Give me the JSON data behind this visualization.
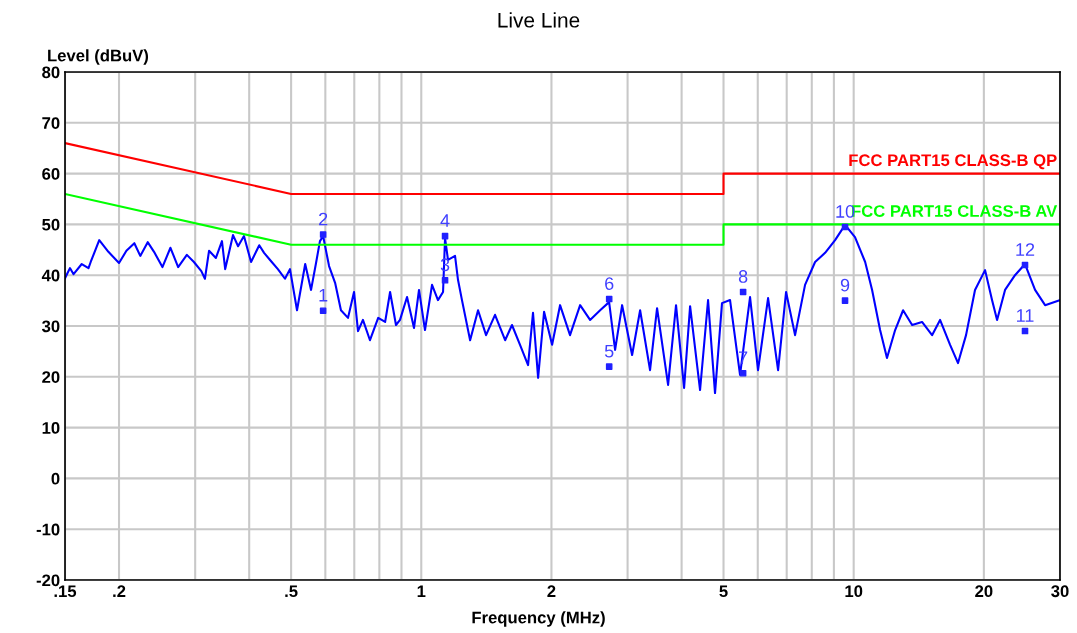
{
  "chart_data": {
    "type": "line",
    "title": "Live Line",
    "xlabel": "Frequency (MHz)",
    "ylabel": "Level (dBuV)",
    "log": "x",
    "grid": true,
    "xlim": [
      0.15,
      30
    ],
    "ylim": [
      -20,
      80
    ],
    "xticks": [
      {
        "value": 0.15,
        "label": ".15"
      },
      {
        "value": 0.2,
        "label": ".2"
      },
      {
        "value": 0.3,
        "label": null
      },
      {
        "value": 0.4,
        "label": null
      },
      {
        "value": 0.5,
        "label": ".5"
      },
      {
        "value": 0.6,
        "label": null
      },
      {
        "value": 0.7,
        "label": null
      },
      {
        "value": 0.8,
        "label": null
      },
      {
        "value": 0.9,
        "label": null
      },
      1,
      2,
      {
        "value": 3,
        "label": null
      },
      {
        "value": 4,
        "label": null
      },
      5,
      {
        "value": 6,
        "label": null
      },
      {
        "value": 7,
        "label": null
      },
      {
        "value": 8,
        "label": null
      },
      {
        "value": 9,
        "label": null
      },
      10,
      20,
      30
    ],
    "yticks": [
      -20,
      -10,
      0,
      10,
      20,
      30,
      40,
      50,
      60,
      70,
      80
    ],
    "series": [
      {
        "color": "#0000ff",
        "x": [
          0.15,
          0.154,
          0.157,
          0.164,
          0.17,
          0.172,
          0.18,
          0.189,
          0.2,
          0.208,
          0.217,
          0.224,
          0.233,
          0.241,
          0.252,
          0.263,
          0.274,
          0.287,
          0.298,
          0.31,
          0.316,
          0.323,
          0.335,
          0.346,
          0.352,
          0.367,
          0.377,
          0.389,
          0.404,
          0.422,
          0.433,
          0.447,
          0.466,
          0.484,
          0.497,
          0.516,
          0.539,
          0.556,
          0.571,
          0.583,
          0.593,
          0.612,
          0.632,
          0.652,
          0.677,
          0.699,
          0.714,
          0.733,
          0.761,
          0.795,
          0.825,
          0.847,
          0.874,
          0.893,
          0.927,
          0.962,
          0.988,
          1.02,
          1.059,
          1.093,
          1.123,
          1.135,
          1.153,
          1.197,
          1.216,
          1.242,
          1.297,
          1.353,
          1.412,
          1.481,
          1.563,
          1.621,
          1.692,
          1.766,
          1.813,
          1.863,
          1.923,
          2.007,
          2.094,
          2.208,
          2.33,
          2.457,
          2.592,
          2.719,
          2.807,
          2.914,
          3.073,
          3.207,
          3.381,
          3.51,
          3.722,
          3.883,
          4.053,
          4.185,
          4.413,
          4.605,
          4.779,
          4.96,
          5.177,
          5.46,
          5.759,
          6.009,
          6.339,
          6.686,
          6.977,
          7.319,
          7.719,
          8.142,
          8.588,
          9.057,
          9.552,
          10.07,
          10.63,
          11.03,
          11.51,
          11.94,
          12.47,
          13.01,
          13.65,
          14.39,
          15.18,
          15.84,
          16.71,
          17.43,
          18.19,
          19.08,
          20.13,
          20.89,
          21.46,
          22.39,
          23.61,
          24.9,
          26.27,
          27.71,
          30.0
        ],
        "values": [
          39.4,
          41.4,
          40.2,
          42.2,
          41.4,
          42.6,
          46.9,
          44.6,
          42.4,
          44.8,
          46.3,
          43.8,
          46.5,
          44.6,
          41.6,
          45.4,
          41.6,
          44.0,
          42.6,
          40.8,
          39.3,
          44.8,
          43.4,
          46.7,
          41.2,
          47.9,
          45.7,
          47.7,
          42.6,
          45.9,
          44.4,
          43.0,
          41.2,
          39.3,
          41.2,
          33.1,
          42.2,
          37.1,
          42.4,
          46.7,
          47.7,
          41.8,
          38.5,
          33.1,
          31.6,
          36.7,
          29.0,
          31.2,
          27.2,
          31.6,
          30.8,
          36.7,
          30.2,
          31.2,
          35.7,
          29.6,
          37.1,
          29.2,
          38.1,
          35.1,
          36.7,
          47.3,
          43.0,
          43.8,
          39.1,
          35.1,
          27.2,
          33.1,
          28.2,
          32.2,
          27.2,
          30.2,
          26.3,
          22.3,
          32.6,
          19.8,
          32.8,
          26.3,
          34.1,
          28.2,
          34.1,
          31.2,
          33.1,
          34.7,
          25.3,
          34.1,
          24.3,
          33.1,
          21.3,
          33.5,
          18.4,
          34.1,
          17.8,
          33.9,
          17.4,
          35.1,
          16.8,
          34.5,
          35.1,
          20.4,
          35.7,
          21.3,
          35.5,
          21.3,
          36.7,
          28.2,
          38.1,
          42.6,
          44.4,
          46.9,
          49.9,
          47.5,
          42.6,
          37.1,
          29.2,
          23.7,
          29.2,
          33.1,
          30.2,
          30.8,
          28.2,
          31.2,
          26.3,
          22.7,
          28.2,
          37.1,
          41.0,
          35.1,
          31.2,
          37.1,
          40.0,
          42.2,
          37.1,
          34.1,
          35.1
        ]
      },
      {
        "name": "FCC PART15 CLASS-B QP",
        "color": "#ff0000",
        "x": [
          0.15,
          0.5,
          5,
          5,
          30
        ],
        "values": [
          66,
          56,
          56,
          60,
          60
        ]
      },
      {
        "name": "FCC PART15 CLASS-B AV",
        "color": "#00ff00",
        "x": [
          0.15,
          0.5,
          5,
          5,
          30
        ],
        "values": [
          56,
          46,
          46,
          50,
          50
        ]
      },
      {
        "type": "scatter",
        "marker": "square",
        "color": "#2020ff",
        "x": [
          0.593,
          0.593,
          1.135,
          1.135,
          2.72,
          2.72,
          5.55,
          5.55,
          9.55,
          9.55,
          24.9,
          24.9
        ],
        "values": [
          33,
          48,
          39,
          47.7,
          22,
          35.3,
          20.7,
          36.7,
          35,
          49.5,
          29,
          42
        ]
      }
    ],
    "annotations": [
      {
        "text": "1",
        "x": 0.593,
        "y": 33
      },
      {
        "text": "2",
        "x": 0.593,
        "y": 48
      },
      {
        "text": "3",
        "x": 1.135,
        "y": 39
      },
      {
        "text": "4",
        "x": 1.135,
        "y": 47.7
      },
      {
        "text": "5",
        "x": 2.72,
        "y": 22
      },
      {
        "text": "6",
        "x": 2.72,
        "y": 35.3
      },
      {
        "text": "7",
        "x": 5.55,
        "y": 20.7
      },
      {
        "text": "8",
        "x": 5.55,
        "y": 36.7
      },
      {
        "text": "9",
        "x": 9.55,
        "y": 35
      },
      {
        "text": "10",
        "x": 9.55,
        "y": 49.5
      },
      {
        "text": "11",
        "x": 24.9,
        "y": 29
      },
      {
        "text": "12",
        "x": 24.9,
        "y": 42
      }
    ]
  }
}
